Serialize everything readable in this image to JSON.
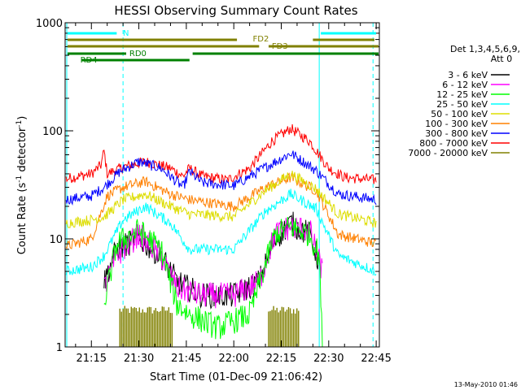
{
  "chart_data": {
    "type": "line",
    "title": "HESSI Observing Summary Count Rates",
    "xlabel": "Start Time (01-Dec-09 21:06:42)",
    "ylabel_main": "Count Rate (s",
    "ylabel_sup1": "-1",
    "ylabel_mid": " detector",
    "ylabel_sup2": "-1",
    "ylabel_end": ")",
    "x_range": [
      "21:06:42",
      "22:46:00"
    ],
    "y_scale": "log",
    "ylim": [
      1,
      1000
    ],
    "x_ticks": [
      "21:15",
      "21:30",
      "21:45",
      "22:00",
      "22:15",
      "22:30",
      "22:45"
    ],
    "y_ticks": [
      "1",
      "10",
      "100",
      "1000"
    ],
    "legend": {
      "placement": "right",
      "header": [
        "Det 1,3,4,5,6,9,",
        "Att 0"
      ],
      "entries": [
        {
          "label": "3 - 6 keV",
          "color": "#000000"
        },
        {
          "label": "6 - 12 keV",
          "color": "#ff00ff"
        },
        {
          "label": "12 - 25 keV",
          "color": "#00ff00"
        },
        {
          "label": "25 - 50 keV",
          "color": "#00ffff"
        },
        {
          "label": "50 - 100 keV",
          "color": "#dddd00"
        },
        {
          "label": "100 - 300 keV",
          "color": "#ff8000"
        },
        {
          "label": "300 - 800 keV",
          "color": "#0000ff"
        },
        {
          "label": "800 - 7000 keV",
          "color": "#ff0000"
        },
        {
          "label": "7000 - 20000 keV",
          "color": "#808000"
        }
      ]
    },
    "flags": [
      {
        "label": "N",
        "color": "#00ffff"
      },
      {
        "label": "FD2",
        "color": "#808000"
      },
      {
        "label": "FD3",
        "color": "#808000"
      },
      {
        "label": "RD0",
        "color": "#008000"
      },
      {
        "label": "RD4",
        "color": "#008000"
      }
    ],
    "series": [
      {
        "name": "800 - 7000 keV",
        "color": "#ff0000",
        "points": [
          [
            "21:07",
            36
          ],
          [
            "21:15",
            40
          ],
          [
            "21:18",
            48
          ],
          [
            "21:19",
            65
          ],
          [
            "21:20",
            40
          ],
          [
            "21:25",
            46
          ],
          [
            "21:32",
            52
          ],
          [
            "21:40",
            45
          ],
          [
            "21:44",
            38
          ],
          [
            "21:46",
            45
          ],
          [
            "21:50",
            38
          ],
          [
            "21:58",
            35
          ],
          [
            "22:05",
            45
          ],
          [
            "22:12",
            80
          ],
          [
            "22:18",
            105
          ],
          [
            "22:24",
            80
          ],
          [
            "22:30",
            45
          ],
          [
            "22:35",
            37
          ],
          [
            "22:45",
            35
          ]
        ]
      },
      {
        "name": "300 - 800 keV",
        "color": "#0000ff",
        "points": [
          [
            "21:07",
            23
          ],
          [
            "21:15",
            25
          ],
          [
            "21:19",
            30
          ],
          [
            "21:24",
            42
          ],
          [
            "21:30",
            52
          ],
          [
            "21:37",
            45
          ],
          [
            "21:44",
            30
          ],
          [
            "21:46",
            42
          ],
          [
            "21:50",
            33
          ],
          [
            "22:00",
            31
          ],
          [
            "22:10",
            46
          ],
          [
            "22:18",
            62
          ],
          [
            "22:26",
            43
          ],
          [
            "22:33",
            26
          ],
          [
            "22:45",
            23
          ]
        ]
      },
      {
        "name": "100 - 300 keV",
        "color": "#ff8000",
        "points": [
          [
            "21:07",
            8.5
          ],
          [
            "21:15",
            10
          ],
          [
            "21:20",
            25
          ],
          [
            "21:25",
            30
          ],
          [
            "21:32",
            34
          ],
          [
            "21:40",
            26
          ],
          [
            "21:46",
            23
          ],
          [
            "22:00",
            20
          ],
          [
            "22:10",
            30
          ],
          [
            "22:18",
            37
          ],
          [
            "22:26",
            28
          ],
          [
            "22:33",
            11
          ],
          [
            "22:45",
            9
          ]
        ]
      },
      {
        "name": "50 - 100 keV",
        "color": "#dddd00",
        "points": [
          [
            "21:07",
            14
          ],
          [
            "21:15",
            15
          ],
          [
            "21:19",
            16
          ],
          [
            "21:25",
            23
          ],
          [
            "21:32",
            26
          ],
          [
            "21:40",
            20
          ],
          [
            "21:46",
            17
          ],
          [
            "22:00",
            16
          ],
          [
            "22:10",
            28
          ],
          [
            "22:18",
            40
          ],
          [
            "22:26",
            29
          ],
          [
            "22:33",
            17
          ],
          [
            "22:45",
            14
          ]
        ]
      },
      {
        "name": "25 - 50 keV",
        "color": "#00ffff",
        "points": [
          [
            "21:07",
            5
          ],
          [
            "21:15",
            5.5
          ],
          [
            "21:19",
            7
          ],
          [
            "21:25",
            15
          ],
          [
            "21:32",
            20
          ],
          [
            "21:40",
            14
          ],
          [
            "21:46",
            8
          ],
          [
            "22:00",
            8
          ],
          [
            "22:10",
            18
          ],
          [
            "22:18",
            26
          ],
          [
            "22:26",
            19
          ],
          [
            "22:33",
            7
          ],
          [
            "22:45",
            5
          ]
        ]
      },
      {
        "name": "3 - 6 keV",
        "color": "#000000",
        "points": [
          [
            "21:19",
            4
          ],
          [
            "21:23",
            8
          ],
          [
            "21:30",
            10
          ],
          [
            "21:37",
            7
          ],
          [
            "21:42",
            4
          ],
          [
            "21:50",
            3
          ],
          [
            "22:00",
            3
          ],
          [
            "22:08",
            4
          ],
          [
            "22:13",
            10
          ],
          [
            "22:18",
            14
          ],
          [
            "22:24",
            11
          ],
          [
            "22:27",
            6
          ]
        ]
      },
      {
        "name": "6 - 12 keV",
        "color": "#ff00ff",
        "points": [
          [
            "21:19",
            3.5
          ],
          [
            "21:23",
            7
          ],
          [
            "21:30",
            11
          ],
          [
            "21:37",
            7
          ],
          [
            "21:42",
            3.5
          ],
          [
            "21:50",
            3
          ],
          [
            "22:00",
            3
          ],
          [
            "22:08",
            4
          ],
          [
            "22:13",
            11
          ],
          [
            "22:18",
            13
          ],
          [
            "22:24",
            12
          ],
          [
            "22:28",
            5
          ]
        ]
      },
      {
        "name": "12 - 25 keV",
        "color": "#00ff00",
        "points": [
          [
            "21:19",
            2.5
          ],
          [
            "21:23",
            9
          ],
          [
            "21:30",
            12
          ],
          [
            "21:37",
            8
          ],
          [
            "21:42",
            2.5
          ],
          [
            "21:46",
            2
          ],
          [
            "21:55",
            1.5
          ],
          [
            "22:05",
            2
          ],
          [
            "22:13",
            11
          ],
          [
            "22:18",
            13
          ],
          [
            "22:24",
            11
          ],
          [
            "22:27",
            7
          ],
          [
            "22:28",
            1
          ]
        ]
      }
    ]
  },
  "footer_date": "13-May-2010 01:46"
}
